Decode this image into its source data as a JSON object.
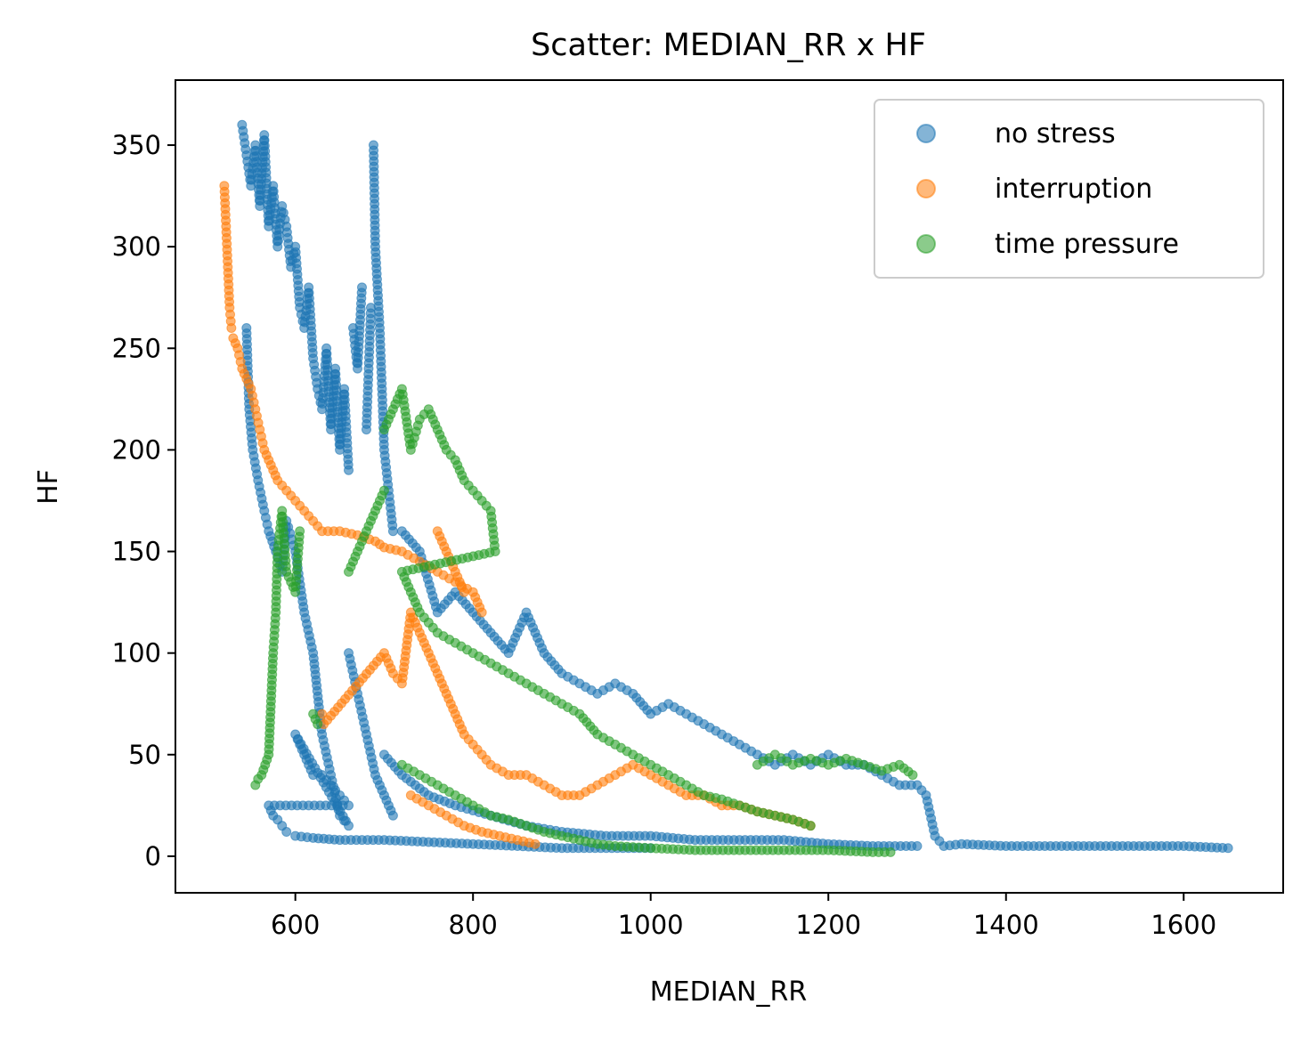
{
  "chart_data": {
    "type": "scatter",
    "title": "Scatter: MEDIAN_RR x HF",
    "xlabel": "MEDIAN_RR",
    "ylabel": "HF",
    "xlim": [
      465,
      1712
    ],
    "ylim": [
      -18,
      382
    ],
    "xticks": [
      600,
      800,
      1000,
      1200,
      1400,
      1600
    ],
    "yticks": [
      0,
      50,
      100,
      150,
      200,
      250,
      300,
      350
    ],
    "grid": false,
    "legend": "top-right",
    "series": [
      {
        "name": "no stress",
        "color": "#1f77b4",
        "points": [
          [
            540,
            360
          ],
          [
            545,
            345
          ],
          [
            550,
            330
          ],
          [
            555,
            350
          ],
          [
            560,
            320
          ],
          [
            565,
            355
          ],
          [
            570,
            310
          ],
          [
            575,
            330
          ],
          [
            580,
            300
          ],
          [
            585,
            320
          ],
          [
            590,
            310
          ],
          [
            595,
            290
          ],
          [
            600,
            300
          ],
          [
            605,
            270
          ],
          [
            610,
            260
          ],
          [
            615,
            280
          ],
          [
            620,
            245
          ],
          [
            625,
            230
          ],
          [
            630,
            220
          ],
          [
            635,
            250
          ],
          [
            640,
            210
          ],
          [
            645,
            240
          ],
          [
            650,
            200
          ],
          [
            655,
            230
          ],
          [
            660,
            190
          ],
          [
            665,
            260
          ],
          [
            670,
            240
          ],
          [
            675,
            280
          ],
          [
            680,
            210
          ],
          [
            685,
            270
          ],
          [
            688,
            350
          ],
          [
            690,
            300
          ],
          [
            695,
            260
          ],
          [
            700,
            200
          ],
          [
            705,
            180
          ],
          [
            710,
            160
          ],
          [
            545,
            260
          ],
          [
            548,
            220
          ],
          [
            552,
            200
          ],
          [
            558,
            185
          ],
          [
            565,
            170
          ],
          [
            570,
            160
          ],
          [
            578,
            150
          ],
          [
            585,
            140
          ],
          [
            590,
            165
          ],
          [
            600,
            150
          ],
          [
            610,
            120
          ],
          [
            620,
            100
          ],
          [
            630,
            60
          ],
          [
            640,
            40
          ],
          [
            650,
            20
          ],
          [
            660,
            15
          ],
          [
            600,
            60
          ],
          [
            605,
            55
          ],
          [
            615,
            45
          ],
          [
            620,
            40
          ],
          [
            630,
            40
          ],
          [
            640,
            35
          ],
          [
            650,
            30
          ],
          [
            660,
            25
          ],
          [
            570,
            25
          ],
          [
            575,
            20
          ],
          [
            580,
            18
          ],
          [
            590,
            12
          ],
          [
            600,
            10
          ],
          [
            620,
            9
          ],
          [
            650,
            8
          ],
          [
            700,
            8
          ],
          [
            750,
            7
          ],
          [
            800,
            6
          ],
          [
            850,
            5
          ],
          [
            900,
            4
          ],
          [
            950,
            4
          ],
          [
            1000,
            4
          ],
          [
            720,
            160
          ],
          [
            740,
            150
          ],
          [
            760,
            120
          ],
          [
            780,
            130
          ],
          [
            800,
            120
          ],
          [
            820,
            110
          ],
          [
            840,
            100
          ],
          [
            860,
            120
          ],
          [
            880,
            100
          ],
          [
            900,
            90
          ],
          [
            920,
            85
          ],
          [
            940,
            80
          ],
          [
            960,
            85
          ],
          [
            980,
            80
          ],
          [
            1000,
            70
          ],
          [
            1020,
            75
          ],
          [
            1040,
            70
          ],
          [
            1060,
            65
          ],
          [
            1080,
            60
          ],
          [
            1100,
            55
          ],
          [
            1120,
            50
          ],
          [
            1140,
            45
          ],
          [
            1160,
            50
          ],
          [
            1180,
            45
          ],
          [
            1200,
            50
          ],
          [
            1220,
            45
          ],
          [
            1240,
            45
          ],
          [
            1260,
            40
          ],
          [
            1280,
            35
          ],
          [
            1300,
            35
          ],
          [
            1310,
            30
          ],
          [
            1320,
            10
          ],
          [
            1330,
            5
          ],
          [
            1350,
            6
          ],
          [
            1400,
            5
          ],
          [
            1450,
            5
          ],
          [
            1500,
            5
          ],
          [
            1550,
            5
          ],
          [
            1600,
            5
          ],
          [
            1650,
            4
          ],
          [
            700,
            50
          ],
          [
            720,
            40
          ],
          [
            750,
            30
          ],
          [
            780,
            25
          ],
          [
            820,
            20
          ],
          [
            860,
            15
          ],
          [
            900,
            12
          ],
          [
            950,
            10
          ],
          [
            1000,
            10
          ],
          [
            1050,
            8
          ],
          [
            1100,
            8
          ],
          [
            1150,
            8
          ],
          [
            1200,
            6
          ],
          [
            1250,
            5
          ],
          [
            1300,
            5
          ],
          [
            660,
            100
          ],
          [
            670,
            80
          ],
          [
            680,
            60
          ],
          [
            690,
            40
          ],
          [
            700,
            30
          ],
          [
            710,
            20
          ]
        ]
      },
      {
        "name": "interruption",
        "color": "#ff7f0e",
        "points": [
          [
            520,
            330
          ],
          [
            522,
            310
          ],
          [
            524,
            290
          ],
          [
            526,
            270
          ],
          [
            528,
            260
          ],
          [
            530,
            255
          ],
          [
            535,
            250
          ],
          [
            540,
            240
          ],
          [
            545,
            235
          ],
          [
            550,
            230
          ],
          [
            555,
            220
          ],
          [
            560,
            210
          ],
          [
            565,
            200
          ],
          [
            570,
            195
          ],
          [
            575,
            190
          ],
          [
            580,
            185
          ],
          [
            590,
            180
          ],
          [
            600,
            175
          ],
          [
            610,
            170
          ],
          [
            620,
            165
          ],
          [
            630,
            160
          ],
          [
            650,
            160
          ],
          [
            670,
            158
          ],
          [
            690,
            155
          ],
          [
            700,
            152
          ],
          [
            720,
            150
          ],
          [
            740,
            145
          ],
          [
            760,
            140
          ],
          [
            780,
            135
          ],
          [
            800,
            130
          ],
          [
            810,
            120
          ],
          [
            630,
            70
          ],
          [
            632,
            65
          ],
          [
            700,
            100
          ],
          [
            710,
            90
          ],
          [
            720,
            85
          ],
          [
            730,
            120
          ],
          [
            740,
            110
          ],
          [
            750,
            100
          ],
          [
            760,
            90
          ],
          [
            770,
            80
          ],
          [
            780,
            70
          ],
          [
            790,
            60
          ],
          [
            800,
            55
          ],
          [
            810,
            50
          ],
          [
            820,
            45
          ],
          [
            840,
            40
          ],
          [
            860,
            40
          ],
          [
            880,
            35
          ],
          [
            900,
            30
          ],
          [
            920,
            30
          ],
          [
            940,
            35
          ],
          [
            960,
            40
          ],
          [
            980,
            45
          ],
          [
            1000,
            40
          ],
          [
            1020,
            35
          ],
          [
            1040,
            30
          ],
          [
            1060,
            30
          ],
          [
            1080,
            25
          ],
          [
            1100,
            25
          ],
          [
            1120,
            22
          ],
          [
            1140,
            20
          ],
          [
            1160,
            18
          ],
          [
            1180,
            15
          ],
          [
            730,
            30
          ],
          [
            750,
            25
          ],
          [
            770,
            20
          ],
          [
            790,
            15
          ],
          [
            810,
            12
          ],
          [
            830,
            10
          ],
          [
            850,
            8
          ],
          [
            870,
            6
          ],
          [
            760,
            160
          ],
          [
            770,
            150
          ],
          [
            780,
            140
          ],
          [
            790,
            130
          ]
        ]
      },
      {
        "name": "time pressure",
        "color": "#2ca02c",
        "points": [
          [
            555,
            35
          ],
          [
            558,
            38
          ],
          [
            562,
            40
          ],
          [
            570,
            50
          ],
          [
            575,
            100
          ],
          [
            578,
            120
          ],
          [
            580,
            150
          ],
          [
            585,
            170
          ],
          [
            590,
            140
          ],
          [
            600,
            130
          ],
          [
            605,
            160
          ],
          [
            620,
            70
          ],
          [
            625,
            65
          ],
          [
            700,
            210
          ],
          [
            710,
            220
          ],
          [
            720,
            230
          ],
          [
            730,
            200
          ],
          [
            740,
            215
          ],
          [
            750,
            220
          ],
          [
            760,
            210
          ],
          [
            770,
            200
          ],
          [
            780,
            195
          ],
          [
            790,
            185
          ],
          [
            800,
            180
          ],
          [
            810,
            175
          ],
          [
            820,
            170
          ],
          [
            825,
            150
          ],
          [
            720,
            140
          ],
          [
            730,
            130
          ],
          [
            740,
            120
          ],
          [
            750,
            115
          ],
          [
            760,
            110
          ],
          [
            780,
            105
          ],
          [
            800,
            100
          ],
          [
            820,
            95
          ],
          [
            840,
            90
          ],
          [
            860,
            85
          ],
          [
            880,
            80
          ],
          [
            900,
            75
          ],
          [
            920,
            70
          ],
          [
            940,
            60
          ],
          [
            960,
            55
          ],
          [
            980,
            50
          ],
          [
            1000,
            45
          ],
          [
            1020,
            40
          ],
          [
            1040,
            35
          ],
          [
            1060,
            30
          ],
          [
            1080,
            28
          ],
          [
            1100,
            25
          ],
          [
            1120,
            22
          ],
          [
            1140,
            20
          ],
          [
            1160,
            18
          ],
          [
            1180,
            15
          ],
          [
            720,
            45
          ],
          [
            740,
            40
          ],
          [
            760,
            35
          ],
          [
            780,
            30
          ],
          [
            800,
            25
          ],
          [
            820,
            20
          ],
          [
            840,
            18
          ],
          [
            860,
            15
          ],
          [
            880,
            12
          ],
          [
            900,
            10
          ],
          [
            920,
            8
          ],
          [
            940,
            6
          ],
          [
            960,
            5
          ],
          [
            1000,
            4
          ],
          [
            1050,
            3
          ],
          [
            1100,
            3
          ],
          [
            1150,
            3
          ],
          [
            1200,
            3
          ],
          [
            1250,
            2
          ],
          [
            1270,
            2
          ],
          [
            1120,
            45
          ],
          [
            1140,
            50
          ],
          [
            1160,
            45
          ],
          [
            1180,
            48
          ],
          [
            1200,
            45
          ],
          [
            1220,
            48
          ],
          [
            1240,
            45
          ],
          [
            1260,
            42
          ],
          [
            1280,
            45
          ],
          [
            1295,
            40
          ],
          [
            660,
            140
          ],
          [
            670,
            150
          ],
          [
            680,
            160
          ],
          [
            690,
            170
          ],
          [
            700,
            180
          ]
        ]
      }
    ]
  }
}
